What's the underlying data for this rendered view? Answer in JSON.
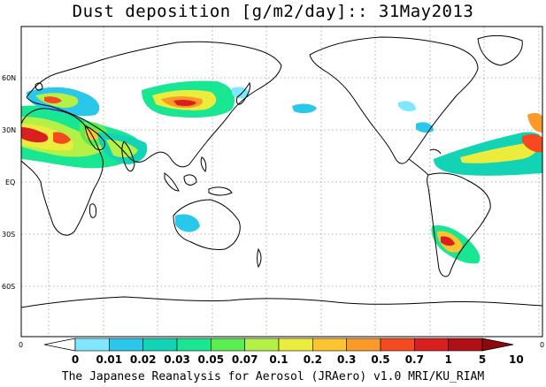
{
  "title": "Dust deposition [g/m2/day]:: 31May2013",
  "credit": "The Japanese Reanalysis for Aerosol (JRAero) v1.0 MRI/KU_RIAM",
  "lat_ticks": [
    "60N",
    "30N",
    "EQ",
    "30S",
    "60S"
  ],
  "axis_end_labels": [
    "0",
    "0"
  ],
  "colorbar": {
    "labels": [
      "0",
      "0.01",
      "0.02",
      "0.03",
      "0.05",
      "0.07",
      "0.1",
      "0.2",
      "0.3",
      "0.5",
      "0.7",
      "1",
      "5",
      "10"
    ],
    "colors": [
      "#ffffff",
      "#7fe8ff",
      "#29c8ea",
      "#12d4b4",
      "#19e692",
      "#5aee50",
      "#b4f046",
      "#ecec3c",
      "#fcc430",
      "#fb9a28",
      "#f54a1f",
      "#da1f1f",
      "#b01015",
      "#8e0810"
    ]
  },
  "colors": {
    "coast": "#000000",
    "grid": "#9a9a9a",
    "frame": "#000000"
  }
}
